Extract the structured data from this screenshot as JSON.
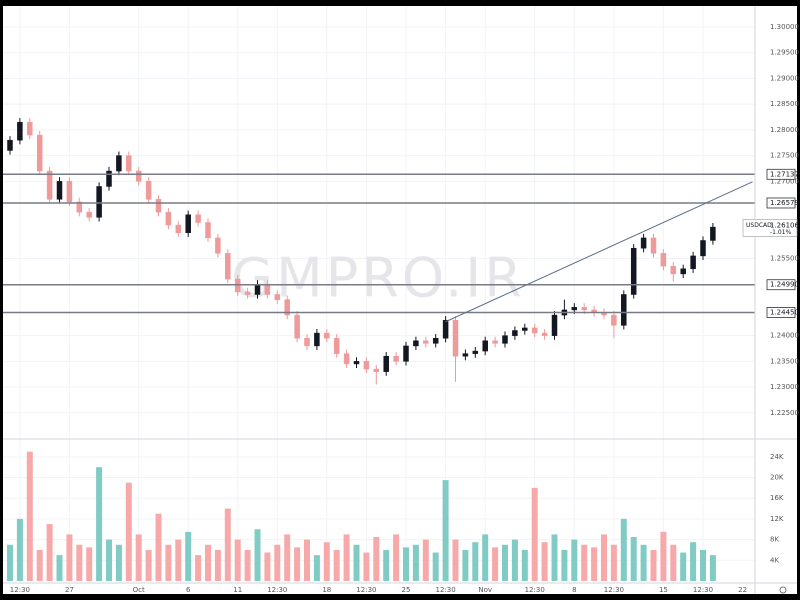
{
  "chart_data": {
    "type": "candlestick",
    "watermark": "GMPRO.IR",
    "categories": [
      null,
      "12:30",
      null,
      null,
      null,
      null,
      "27",
      null,
      null,
      null,
      null,
      null,
      null,
      "Oct",
      null,
      null,
      null,
      null,
      "6",
      null,
      null,
      null,
      null,
      "11",
      null,
      null,
      null,
      "12:30",
      null,
      null,
      null,
      null,
      "18",
      null,
      null,
      null,
      "12:30",
      null,
      null,
      null,
      "25",
      null,
      null,
      null,
      "12:30",
      null,
      null,
      null,
      "Nov",
      null,
      null,
      null,
      null,
      "12:30",
      null,
      null,
      null,
      "8",
      null,
      null,
      null,
      "12:30",
      null,
      null,
      null,
      null,
      "15",
      null,
      null,
      null,
      "12:30",
      null
    ],
    "extra_x_label": {
      "index": 74,
      "label": "22"
    },
    "open": [
      1.276,
      1.278,
      1.2815,
      1.279,
      1.272,
      1.2665,
      1.27,
      1.266,
      1.264,
      1.263,
      1.269,
      1.272,
      1.275,
      1.272,
      1.27,
      1.2665,
      1.264,
      1.2615,
      1.26,
      1.2635,
      1.262,
      1.259,
      1.256,
      1.251,
      1.2485,
      1.248,
      1.25,
      1.248,
      1.247,
      1.244,
      1.2395,
      1.238,
      1.2405,
      1.2395,
      1.2365,
      1.2345,
      1.235,
      1.2335,
      1.233,
      1.236,
      1.235,
      1.238,
      1.239,
      1.2385,
      1.2395,
      1.243,
      1.236,
      1.2365,
      1.237,
      1.239,
      1.2385,
      1.24,
      1.241,
      1.2415,
      1.2405,
      1.24,
      1.244,
      1.245,
      1.2455,
      1.245,
      1.2445,
      1.244,
      1.242,
      1.248,
      1.257,
      1.259,
      1.256,
      1.2535,
      1.252,
      1.253,
      1.2555,
      1.2585
    ],
    "high": [
      1.2788,
      1.2823,
      1.2823,
      1.2798,
      1.2728,
      1.2708,
      1.2708,
      1.2668,
      1.2648,
      1.2698,
      1.2728,
      1.2758,
      1.2758,
      1.2728,
      1.2708,
      1.2673,
      1.2648,
      1.2623,
      1.2643,
      1.2643,
      1.2628,
      1.2598,
      1.2568,
      1.2518,
      1.2493,
      1.2508,
      1.2508,
      1.2488,
      1.2478,
      1.2448,
      1.2403,
      1.2413,
      1.2413,
      1.2403,
      1.2373,
      1.2358,
      1.2358,
      1.2343,
      1.2368,
      1.2368,
      1.2388,
      1.2398,
      1.2398,
      1.2403,
      1.2438,
      1.2438,
      1.2373,
      1.2378,
      1.2398,
      1.2398,
      1.2408,
      1.2418,
      1.2423,
      1.2423,
      1.2413,
      1.2448,
      1.247,
      1.2463,
      1.2463,
      1.2458,
      1.2453,
      1.2448,
      1.2488,
      1.2578,
      1.2598,
      1.2598,
      1.2568,
      1.2543,
      1.2538,
      1.2563,
      1.2593,
      1.2619
    ],
    "low": [
      1.2752,
      1.2772,
      1.2782,
      1.2712,
      1.2657,
      1.2657,
      1.2652,
      1.2632,
      1.2622,
      1.2622,
      1.2682,
      1.2712,
      1.2712,
      1.2692,
      1.2657,
      1.2632,
      1.2607,
      1.2592,
      1.2592,
      1.2612,
      1.2582,
      1.2552,
      1.2502,
      1.2477,
      1.2472,
      1.2472,
      1.2472,
      1.2462,
      1.2432,
      1.2387,
      1.2372,
      1.2372,
      1.2387,
      1.2357,
      1.2337,
      1.2337,
      1.2327,
      1.2305,
      1.2322,
      1.2342,
      1.2342,
      1.2372,
      1.2377,
      1.2377,
      1.2387,
      1.231,
      1.2352,
      1.2357,
      1.2362,
      1.2377,
      1.2377,
      1.2392,
      1.2402,
      1.2397,
      1.2392,
      1.2392,
      1.2432,
      1.2442,
      1.2442,
      1.2437,
      1.2432,
      1.2395,
      1.2412,
      1.2472,
      1.2562,
      1.2552,
      1.2527,
      1.2505,
      1.2512,
      1.2522,
      1.2547,
      1.2577
    ],
    "close": [
      1.278,
      1.2815,
      1.279,
      1.272,
      1.2665,
      1.27,
      1.266,
      1.264,
      1.263,
      1.269,
      1.272,
      1.275,
      1.272,
      1.27,
      1.2665,
      1.264,
      1.2615,
      1.26,
      1.2635,
      1.262,
      1.259,
      1.256,
      1.251,
      1.2485,
      1.248,
      1.25,
      1.248,
      1.247,
      1.244,
      1.2395,
      1.238,
      1.2405,
      1.2395,
      1.2365,
      1.2345,
      1.235,
      1.2335,
      1.233,
      1.236,
      1.235,
      1.238,
      1.239,
      1.2385,
      1.2395,
      1.243,
      1.236,
      1.2365,
      1.237,
      1.239,
      1.2385,
      1.24,
      1.241,
      1.2415,
      1.2405,
      1.24,
      1.244,
      1.245,
      1.2455,
      1.245,
      1.2445,
      1.244,
      1.242,
      1.248,
      1.257,
      1.259,
      1.256,
      1.2535,
      1.252,
      1.253,
      1.2555,
      1.2585,
      1.2611
    ],
    "volume": [
      7000,
      12000,
      25000,
      6000,
      11000,
      5000,
      9000,
      7000,
      6500,
      22000,
      8000,
      7000,
      19000,
      9000,
      6000,
      13000,
      7000,
      8000,
      9500,
      5000,
      7000,
      6000,
      14000,
      8000,
      6000,
      10000,
      5500,
      7000,
      9000,
      6500,
      8000,
      5000,
      7500,
      6000,
      9000,
      7000,
      5500,
      8500,
      6000,
      9000,
      6500,
      7000,
      8000,
      5500,
      19500,
      8000,
      6000,
      7500,
      9000,
      6500,
      7000,
      8000,
      6000,
      18000,
      7500,
      9000,
      6000,
      8000,
      7000,
      6500,
      9000,
      7000,
      12000,
      8500,
      7000,
      6000,
      9500,
      7000,
      5500,
      7500,
      6000,
      5000
    ],
    "up_color": "#131722",
    "down_color": "#ef9a9a",
    "volume_up_color": "#80cbc4",
    "volume_down_color": "#f7a9a9",
    "ylim": [
      1.2201,
      1.3037
    ],
    "yticks": [
      {
        "value": 1.225,
        "label": "1.22500"
      },
      {
        "value": 1.23,
        "label": "1.23000"
      },
      {
        "value": 1.235,
        "label": "1.23500"
      },
      {
        "value": 1.24,
        "label": "1.24000"
      },
      {
        "value": 1.255,
        "label": "1.25500"
      },
      {
        "value": 1.27,
        "label": "1.27000"
      },
      {
        "value": 1.275,
        "label": "1.27500"
      },
      {
        "value": 1.28,
        "label": "1.28000"
      },
      {
        "value": 1.285,
        "label": "1.28500"
      },
      {
        "value": 1.29,
        "label": "1.29000"
      },
      {
        "value": 1.295,
        "label": "1.29500"
      },
      {
        "value": 1.3,
        "label": "1.30000"
      }
    ],
    "y2lim": [
      0,
      27250
    ],
    "y2ticks": [
      {
        "value": 4000,
        "label": "4K"
      },
      {
        "value": 8000,
        "label": "8K"
      },
      {
        "value": 12000,
        "label": "12K"
      },
      {
        "value": 16000,
        "label": "16K"
      },
      {
        "value": 20000,
        "label": "20K"
      },
      {
        "value": 24000,
        "label": "24K"
      }
    ],
    "levels": [
      {
        "value": 1.27137,
        "label": "1.27137"
      },
      {
        "value": 1.26579,
        "label": "1.26579"
      },
      {
        "value": 1.2499,
        "label": "1.24990"
      },
      {
        "value": 1.2445,
        "label": "1.24450"
      }
    ],
    "trendline": {
      "x": [
        44,
        75
      ],
      "y": [
        1.2427,
        1.2699
      ]
    },
    "last_price": {
      "symbol": "USDCAD",
      "value": 1.26106,
      "change": "-1.01%"
    },
    "grid": true
  }
}
